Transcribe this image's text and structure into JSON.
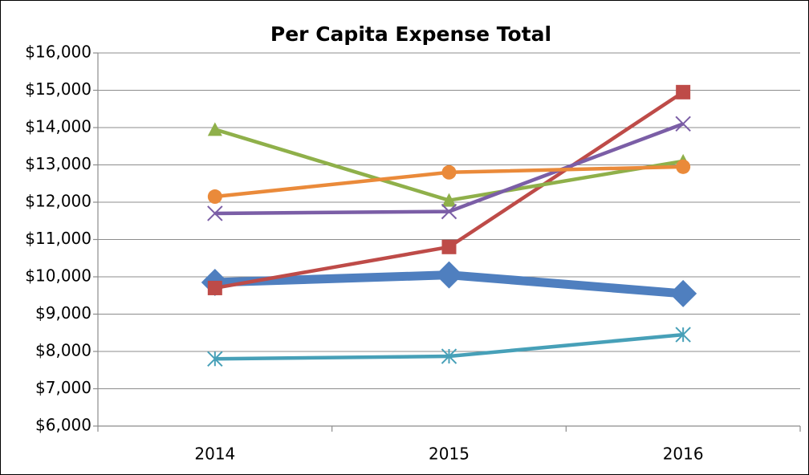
{
  "chart_data": {
    "type": "line",
    "title": "Per Capita Expense Total",
    "categories": [
      "2014",
      "2015",
      "2016"
    ],
    "series": [
      {
        "color": "#4f7fbf",
        "marker": "diamond",
        "values": [
          9850,
          10050,
          9550
        ]
      },
      {
        "color": "#be4b48",
        "marker": "square",
        "values": [
          9700,
          10800,
          14950
        ]
      },
      {
        "color": "#8fb04a",
        "marker": "triangle",
        "values": [
          13950,
          12050,
          13100
        ]
      },
      {
        "color": "#7b5ea6",
        "marker": "x",
        "values": [
          11700,
          11750,
          14100
        ]
      },
      {
        "color": "#47a0b8",
        "marker": "asterisk",
        "values": [
          7800,
          7870,
          8450
        ]
      },
      {
        "color": "#ea8a3a",
        "marker": "circle",
        "values": [
          12150,
          12800,
          12950
        ]
      }
    ],
    "ylim": [
      6000,
      16000
    ],
    "yticks": [
      {
        "value": 6000,
        "label": "$6,000"
      },
      {
        "value": 7000,
        "label": "$7,000"
      },
      {
        "value": 8000,
        "label": "$8,000"
      },
      {
        "value": 9000,
        "label": "$9,000"
      },
      {
        "value": 10000,
        "label": "$10,000"
      },
      {
        "value": 11000,
        "label": "$11,000"
      },
      {
        "value": 12000,
        "label": "$12,000"
      },
      {
        "value": 13000,
        "label": "$13,000"
      },
      {
        "value": 14000,
        "label": "$14,000"
      },
      {
        "value": 15000,
        "label": "$15,000"
      },
      {
        "value": 16000,
        "label": "$16,000"
      }
    ],
    "grid": true
  }
}
